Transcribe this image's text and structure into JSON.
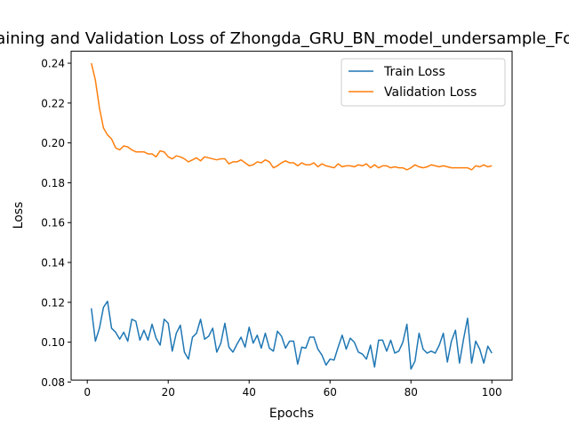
{
  "chart_data": {
    "type": "line",
    "title": "Training and Validation Loss of Zhongda_GRU_BN_model_undersample_Fold",
    "xlabel": "Epochs",
    "ylabel": "Loss",
    "xlim": [
      -4,
      105
    ],
    "ylim": [
      0.081,
      0.246
    ],
    "xticks": [
      0,
      20,
      40,
      60,
      80,
      100
    ],
    "yticks": [
      0.08,
      0.1,
      0.12,
      0.14,
      0.16,
      0.18,
      0.2,
      0.22,
      0.24
    ],
    "ytick_labels": [
      "0.08",
      "0.10",
      "0.12",
      "0.14",
      "0.16",
      "0.18",
      "0.20",
      "0.22",
      "0.24"
    ],
    "legend_position": "top-right",
    "grid": false,
    "series": [
      {
        "name": "Train Loss",
        "color": "#1f77b4",
        "x": [
          1,
          2,
          3,
          4,
          5,
          6,
          7,
          8,
          9,
          10,
          11,
          12,
          13,
          14,
          15,
          16,
          17,
          18,
          19,
          20,
          21,
          22,
          23,
          24,
          25,
          26,
          27,
          28,
          29,
          30,
          31,
          32,
          33,
          34,
          35,
          36,
          37,
          38,
          39,
          40,
          41,
          42,
          43,
          44,
          45,
          46,
          47,
          48,
          49,
          50,
          51,
          52,
          53,
          54,
          55,
          56,
          57,
          58,
          59,
          60,
          61,
          62,
          63,
          64,
          65,
          66,
          67,
          68,
          69,
          70,
          71,
          72,
          73,
          74,
          75,
          76,
          77,
          78,
          79,
          80,
          81,
          82,
          83,
          84,
          85,
          86,
          87,
          88,
          89,
          90,
          91,
          92,
          93,
          94,
          95,
          96,
          97,
          98,
          99,
          100
        ],
        "values": [
          0.117,
          0.1005,
          0.107,
          0.1175,
          0.1205,
          0.107,
          0.105,
          0.1015,
          0.105,
          0.1005,
          0.1115,
          0.1105,
          0.101,
          0.106,
          0.101,
          0.109,
          0.102,
          0.0985,
          0.1115,
          0.1095,
          0.0955,
          0.1045,
          0.1085,
          0.095,
          0.0915,
          0.1025,
          0.1045,
          0.1115,
          0.1015,
          0.103,
          0.107,
          0.095,
          0.0995,
          0.1095,
          0.0975,
          0.095,
          0.099,
          0.1025,
          0.0975,
          0.1075,
          0.0995,
          0.1035,
          0.097,
          0.1045,
          0.097,
          0.0955,
          0.1055,
          0.103,
          0.097,
          0.1005,
          0.1005,
          0.089,
          0.0975,
          0.097,
          0.1025,
          0.1025,
          0.0965,
          0.0935,
          0.0885,
          0.0915,
          0.091,
          0.0975,
          0.1035,
          0.0965,
          0.102,
          0.1,
          0.095,
          0.094,
          0.0915,
          0.0985,
          0.0875,
          0.101,
          0.101,
          0.0955,
          0.101,
          0.0945,
          0.0955,
          0.1,
          0.109,
          0.0865,
          0.0905,
          0.1045,
          0.0965,
          0.0945,
          0.0955,
          0.0945,
          0.0985,
          0.1045,
          0.09,
          0.1005,
          0.106,
          0.0895,
          0.1015,
          0.112,
          0.0895,
          0.1005,
          0.0965,
          0.0895,
          0.098,
          0.0945
        ]
      },
      {
        "name": "Validation Loss",
        "color": "#ff7f0e",
        "x": [
          1,
          2,
          3,
          4,
          5,
          6,
          7,
          8,
          9,
          10,
          11,
          12,
          13,
          14,
          15,
          16,
          17,
          18,
          19,
          20,
          21,
          22,
          23,
          24,
          25,
          26,
          27,
          28,
          29,
          30,
          31,
          32,
          33,
          34,
          35,
          36,
          37,
          38,
          39,
          40,
          41,
          42,
          43,
          44,
          45,
          46,
          47,
          48,
          49,
          50,
          51,
          52,
          53,
          54,
          55,
          56,
          57,
          58,
          59,
          60,
          61,
          62,
          63,
          64,
          65,
          66,
          67,
          68,
          69,
          70,
          71,
          72,
          73,
          74,
          75,
          76,
          77,
          78,
          79,
          80,
          81,
          82,
          83,
          84,
          85,
          86,
          87,
          88,
          89,
          90,
          91,
          92,
          93,
          94,
          95,
          96,
          97,
          98,
          99,
          100
        ],
        "values": [
          0.24,
          0.2315,
          0.2175,
          0.2075,
          0.204,
          0.202,
          0.1975,
          0.1965,
          0.1985,
          0.198,
          0.1965,
          0.1955,
          0.1955,
          0.1955,
          0.1945,
          0.1945,
          0.193,
          0.196,
          0.1955,
          0.193,
          0.192,
          0.1935,
          0.193,
          0.192,
          0.1905,
          0.1915,
          0.1925,
          0.191,
          0.193,
          0.1925,
          0.192,
          0.1915,
          0.192,
          0.192,
          0.1895,
          0.1905,
          0.1905,
          0.1915,
          0.19,
          0.1885,
          0.189,
          0.1905,
          0.19,
          0.1915,
          0.1905,
          0.1875,
          0.1885,
          0.19,
          0.191,
          0.19,
          0.19,
          0.1885,
          0.19,
          0.189,
          0.189,
          0.19,
          0.188,
          0.1895,
          0.1885,
          0.188,
          0.1875,
          0.1895,
          0.188,
          0.1885,
          0.1885,
          0.188,
          0.189,
          0.1885,
          0.1895,
          0.1875,
          0.189,
          0.1875,
          0.1885,
          0.1885,
          0.1875,
          0.188,
          0.1875,
          0.1875,
          0.1865,
          0.1875,
          0.189,
          0.188,
          0.1875,
          0.188,
          0.189,
          0.1885,
          0.188,
          0.1885,
          0.188,
          0.1875,
          0.1875,
          0.1875,
          0.1875,
          0.1875,
          0.1865,
          0.1885,
          0.188,
          0.189,
          0.188,
          0.1885
        ]
      }
    ]
  }
}
